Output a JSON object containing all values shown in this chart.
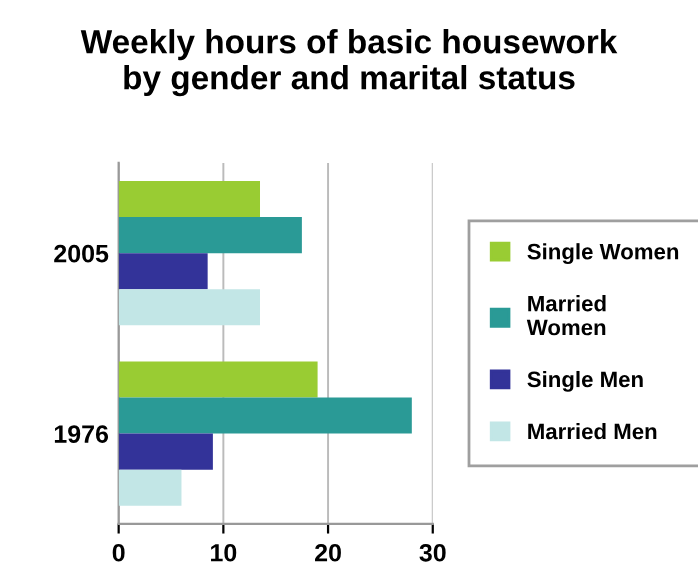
{
  "chart_data": {
    "type": "bar",
    "orientation": "horizontal",
    "title": "Weekly hours of basic housework\nby gender and marital status",
    "categories": [
      "2005",
      "1976"
    ],
    "series": [
      {
        "name": "Single Women",
        "color": "#99cc33",
        "values": [
          13.5,
          19
        ]
      },
      {
        "name": "Married\nWomen",
        "color": "#2a9a96",
        "values": [
          17.5,
          28
        ]
      },
      {
        "name": "Single Men",
        "color": "#333399",
        "values": [
          8.5,
          9
        ]
      },
      {
        "name": "Married Men",
        "color": "#c2e6e6",
        "values": [
          13.5,
          6
        ]
      }
    ],
    "xlim": [
      0,
      30
    ],
    "xticks": [
      0,
      10,
      20,
      30
    ],
    "grid": "x",
    "legend": "right"
  }
}
